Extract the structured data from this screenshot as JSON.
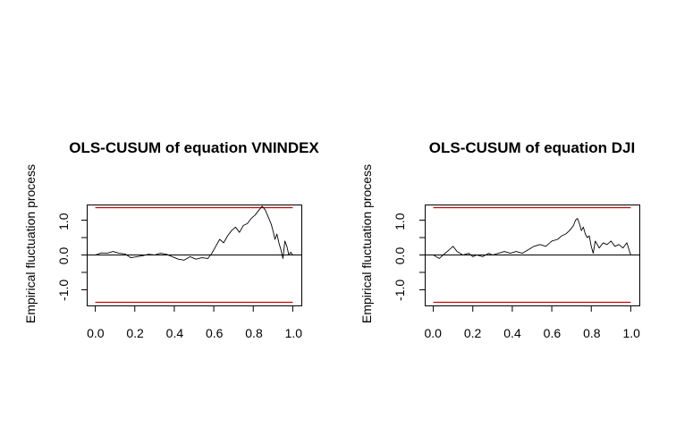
{
  "chart_data": [
    {
      "type": "line",
      "title": "OLS-CUSUM of equation VNINDEX",
      "xlabel": "",
      "ylabel": "Empirical fluctuation process",
      "xlim": [
        0,
        1
      ],
      "ylim": [
        -1.45,
        1.45
      ],
      "x_ticks": [
        "0.0",
        "0.2",
        "0.4",
        "0.6",
        "0.8",
        "1.0"
      ],
      "y_ticks": [
        "-1.0",
        "0.0",
        "1.0"
      ],
      "boundary": 1.36,
      "boundary_color": "#cc0000",
      "line_color": "#000000",
      "series": [
        {
          "x": [
            0.0,
            0.03,
            0.06,
            0.09,
            0.12,
            0.15,
            0.18,
            0.21,
            0.24,
            0.27,
            0.3,
            0.33,
            0.36,
            0.39,
            0.42,
            0.45,
            0.48,
            0.51,
            0.54,
            0.57,
            0.59,
            0.61,
            0.63,
            0.65,
            0.67,
            0.69,
            0.71,
            0.73,
            0.75,
            0.77,
            0.79,
            0.81,
            0.83,
            0.845,
            0.86,
            0.875,
            0.89,
            0.9,
            0.91,
            0.92,
            0.93,
            0.94,
            0.95,
            0.96,
            0.97,
            0.98,
            0.99,
            1.0
          ],
          "y": [
            0.0,
            0.06,
            0.05,
            0.1,
            0.05,
            0.03,
            -0.08,
            -0.05,
            -0.02,
            0.02,
            0.0,
            0.05,
            0.02,
            -0.05,
            -0.12,
            -0.15,
            -0.05,
            -0.12,
            -0.08,
            -0.1,
            0.05,
            0.25,
            0.45,
            0.35,
            0.55,
            0.7,
            0.8,
            0.65,
            0.85,
            0.9,
            1.05,
            1.15,
            1.3,
            1.4,
            1.3,
            1.1,
            0.9,
            0.7,
            0.45,
            0.6,
            0.35,
            0.15,
            -0.1,
            0.4,
            0.25,
            0.0,
            0.08,
            0.0
          ]
        }
      ]
    },
    {
      "type": "line",
      "title": "OLS-CUSUM of equation DJI",
      "xlabel": "",
      "ylabel": "Empirical fluctuation process",
      "xlim": [
        0,
        1
      ],
      "ylim": [
        -1.45,
        1.45
      ],
      "x_ticks": [
        "0.0",
        "0.2",
        "0.4",
        "0.6",
        "0.8",
        "1.0"
      ],
      "y_ticks": [
        "-1.0",
        "0.0",
        "1.0"
      ],
      "boundary": 1.36,
      "boundary_color": "#cc0000",
      "line_color": "#000000",
      "series": [
        {
          "x": [
            0.0,
            0.03,
            0.05,
            0.08,
            0.1,
            0.12,
            0.15,
            0.18,
            0.2,
            0.22,
            0.25,
            0.28,
            0.3,
            0.33,
            0.36,
            0.39,
            0.42,
            0.45,
            0.48,
            0.51,
            0.54,
            0.57,
            0.6,
            0.63,
            0.65,
            0.67,
            0.69,
            0.71,
            0.72,
            0.73,
            0.74,
            0.75,
            0.76,
            0.77,
            0.78,
            0.79,
            0.8,
            0.81,
            0.82,
            0.84,
            0.86,
            0.88,
            0.9,
            0.92,
            0.94,
            0.96,
            0.98,
            1.0
          ],
          "y": [
            0.0,
            -0.1,
            0.0,
            0.15,
            0.25,
            0.1,
            0.0,
            0.05,
            -0.05,
            0.0,
            -0.05,
            0.05,
            0.0,
            0.05,
            0.1,
            0.05,
            0.1,
            0.05,
            0.15,
            0.25,
            0.3,
            0.25,
            0.4,
            0.45,
            0.55,
            0.6,
            0.7,
            0.85,
            1.0,
            1.05,
            0.9,
            0.7,
            0.8,
            0.6,
            0.5,
            0.55,
            0.25,
            0.05,
            0.4,
            0.2,
            0.35,
            0.3,
            0.4,
            0.25,
            0.3,
            0.2,
            0.35,
            0.0
          ]
        }
      ]
    }
  ]
}
